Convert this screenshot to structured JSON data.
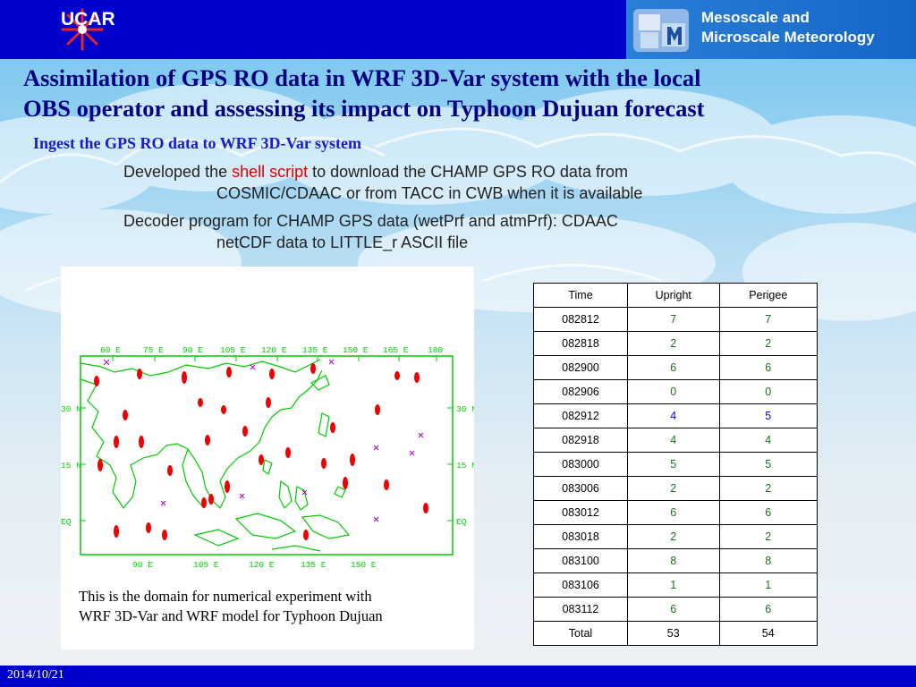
{
  "header": {
    "org_logo_text": "UCAR",
    "division_line1": "Mesoscale and",
    "division_line2": "Microscale Meteorology"
  },
  "slide": {
    "title_line1": "Assimilation of GPS RO data in WRF 3D-Var system with the local",
    "title_line2": "OBS operator and assessing its impact on Typhoon Dujuan forecast",
    "subtitle": "Ingest the GPS RO data to WRF 3D-Var system",
    "bullet1": {
      "pre": "Developed the ",
      "highlight": "shell script",
      "post": " to download the CHAMP GPS RO data from",
      "line2": "COSMIC/CDAAC or from TACC in CWB when it is available"
    },
    "bullet2": {
      "line1": "Decoder program for CHAMP GPS data (wetPrf and atmPrf): CDAAC",
      "line2": "netCDF data to LITTLE_r ASCII file"
    }
  },
  "map": {
    "caption_line1": "This is the domain for numerical experiment with",
    "caption_line2": "WRF 3D-Var and WRF model for Typhoon Dujuan",
    "top_labels": [
      "60 E",
      "75 E",
      "90 E",
      "105 E",
      "120 E",
      "135 E",
      "150 E",
      "165 E",
      "180"
    ],
    "bottom_labels": [
      "90 E",
      "105 E",
      "120 E",
      "135 E",
      "150 E"
    ],
    "left_labels": [
      "30 N",
      "15 N",
      "EQ"
    ],
    "right_labels": [
      "30 N",
      "15 N",
      "EQ"
    ],
    "colors": {
      "coast": "#00cc00",
      "obs": "#ee0000",
      "marker": "#aa00cc"
    }
  },
  "table": {
    "headers": [
      "Time",
      "Upright",
      "Perigee"
    ],
    "rows": [
      {
        "time": "082812",
        "upright": "7",
        "perigee": "7"
      },
      {
        "time": "082818",
        "upright": "2",
        "perigee": "2"
      },
      {
        "time": "082900",
        "upright": "6",
        "perigee": "6"
      },
      {
        "time": "082906",
        "upright": "0",
        "perigee": "0"
      },
      {
        "time": "082912",
        "upright": "4",
        "perigee": "5"
      },
      {
        "time": "082918",
        "upright": "4",
        "perigee": "4"
      },
      {
        "time": "083000",
        "upright": "5",
        "perigee": "5"
      },
      {
        "time": "083006",
        "upright": "2",
        "perigee": "2"
      },
      {
        "time": "083012",
        "upright": "6",
        "perigee": "6"
      },
      {
        "time": "083018",
        "upright": "2",
        "perigee": "2"
      },
      {
        "time": "083100",
        "upright": "8",
        "perigee": "8"
      },
      {
        "time": "083106",
        "upright": "1",
        "perigee": "1"
      },
      {
        "time": "083112",
        "upright": "6",
        "perigee": "6"
      }
    ],
    "total": {
      "label": "Total",
      "upright": "53",
      "perigee": "54"
    }
  },
  "footer": {
    "date": "2014/10/21"
  }
}
